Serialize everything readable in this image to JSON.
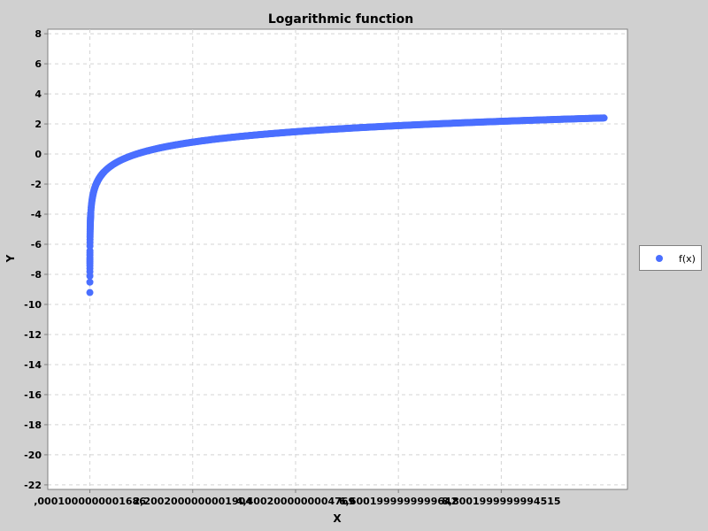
{
  "chart_data": {
    "type": "scatter",
    "title": "Logarithmic function",
    "xlabel": "X",
    "ylabel": "Y",
    "function": "ln(x)",
    "x_range": [
      0.0001,
      11.0
    ],
    "xlim": [
      -0.9,
      11.5
    ],
    "ylim": [
      -22.3,
      8.3
    ],
    "x_ticks": [
      {
        "value": 0.0001000000001686,
        "label": ",0001000000001686"
      },
      {
        "value": 2.2002000000001902,
        "label": "2,2002000000001904"
      },
      {
        "value": 4.400200000000477,
        "label": "4,4002000000004769"
      },
      {
        "value": 6.6001999999999645,
        "label": "6,6001999999999642"
      },
      {
        "value": 8.800199999999451,
        "label": "8,8001999999994515"
      }
    ],
    "y_ticks": [
      {
        "value": 8,
        "label": "8"
      },
      {
        "value": 6,
        "label": "6"
      },
      {
        "value": 4,
        "label": "4"
      },
      {
        "value": 2,
        "label": "2"
      },
      {
        "value": 0,
        "label": "0"
      },
      {
        "value": -2,
        "label": "-2"
      },
      {
        "value": -4,
        "label": "-4"
      },
      {
        "value": -6,
        "label": "-6"
      },
      {
        "value": -8,
        "label": "-8"
      },
      {
        "value": -10,
        "label": "-10"
      },
      {
        "value": -12,
        "label": "-12"
      },
      {
        "value": -14,
        "label": "-14"
      },
      {
        "value": -16,
        "label": "-16"
      },
      {
        "value": -18,
        "label": "-18"
      },
      {
        "value": -20,
        "label": "-20"
      },
      {
        "value": -22,
        "label": "-22"
      }
    ],
    "series": [
      {
        "name": "f(x)",
        "color": "#4a6fff",
        "generator": "ln(x)"
      }
    ],
    "grid": true,
    "legend_position": "right"
  }
}
